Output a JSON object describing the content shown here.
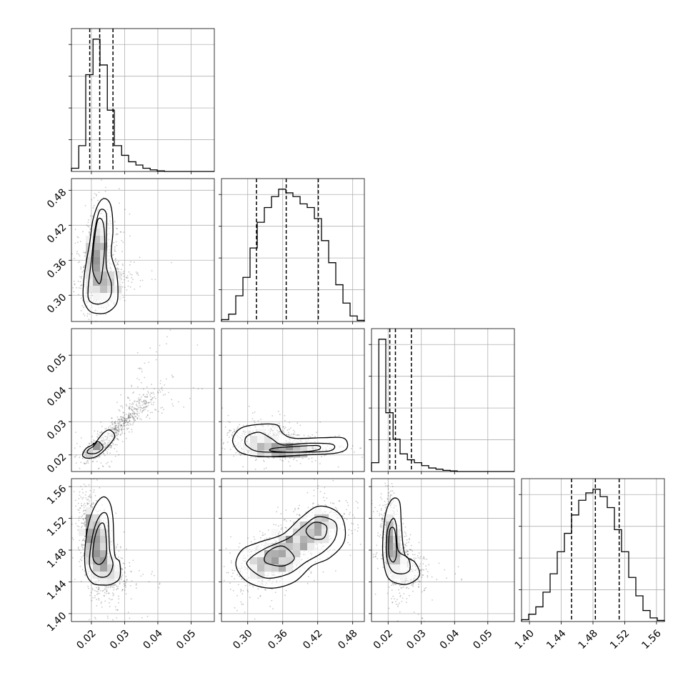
{
  "chart_data": {
    "type": "corner",
    "grid": true,
    "parameters": [
      {
        "range": [
          0.014,
          0.057
        ],
        "ticks": [
          0.02,
          0.03,
          0.04,
          0.05
        ],
        "tick_labels": [
          "0.02",
          "0.03",
          "0.04",
          "0.05"
        ],
        "quantiles": [
          0.0195,
          0.0225,
          0.0265
        ],
        "hist": {
          "edges": [
            0.014,
            0.0162,
            0.0183,
            0.0205,
            0.0226,
            0.0248,
            0.0269,
            0.0291,
            0.0312,
            0.0334,
            0.0355,
            0.0377,
            0.0398,
            0.042,
            0.0441,
            0.0463,
            0.0484,
            0.0506,
            0.0527,
            0.0549,
            0.057
          ],
          "counts": [
            1,
            8,
            30,
            41,
            33,
            19,
            8,
            5,
            3,
            2,
            1,
            0.5,
            0.2,
            0,
            0,
            0,
            0,
            0,
            0,
            0
          ]
        }
      },
      {
        "range": [
          0.255,
          0.5
        ],
        "ticks": [
          0.3,
          0.36,
          0.42,
          0.48
        ],
        "tick_labels": [
          "0.30",
          "0.36",
          "0.42",
          "0.48"
        ],
        "quantiles": [
          0.315,
          0.366,
          0.421
        ],
        "hist": {
          "edges": [
            0.255,
            0.2673,
            0.2795,
            0.2918,
            0.304,
            0.3163,
            0.3285,
            0.3408,
            0.353,
            0.3653,
            0.3775,
            0.3898,
            0.402,
            0.4143,
            0.4265,
            0.4388,
            0.451,
            0.4633,
            0.4755,
            0.4878,
            0.5
          ],
          "counts": [
            0.5,
            2,
            7,
            12,
            20,
            27,
            31,
            34,
            36,
            35,
            34,
            32,
            31,
            28,
            22,
            16,
            10,
            5,
            1.5,
            0.3
          ]
        }
      },
      {
        "range": [
          0.015,
          0.058
        ],
        "ticks": [
          0.02,
          0.03,
          0.04,
          0.05
        ],
        "tick_labels": [
          "0.02",
          "0.03",
          "0.04",
          "0.05"
        ],
        "quantiles": [
          0.0205,
          0.0222,
          0.027
        ],
        "hist": {
          "edges": [
            0.015,
            0.0172,
            0.0193,
            0.0215,
            0.0236,
            0.0258,
            0.0279,
            0.0301,
            0.0322,
            0.0344,
            0.0365,
            0.0387,
            0.0408,
            0.043,
            0.0451,
            0.0473,
            0.0494,
            0.0516,
            0.0537,
            0.0559,
            0.058
          ],
          "counts": [
            3,
            45,
            20,
            11,
            6,
            4,
            3,
            2,
            1.2,
            0.8,
            0.4,
            0.2,
            0,
            0,
            0,
            0,
            0,
            0,
            0,
            0
          ]
        }
      },
      {
        "range": [
          1.39,
          1.57
        ],
        "ticks": [
          1.4,
          1.44,
          1.48,
          1.52,
          1.56
        ],
        "tick_labels": [
          "1.40",
          "1.44",
          "1.48",
          "1.52",
          "1.56"
        ],
        "quantiles": [
          1.453,
          1.483,
          1.513
        ],
        "hist": {
          "edges": [
            1.39,
            1.399,
            1.408,
            1.417,
            1.426,
            1.435,
            1.444,
            1.453,
            1.462,
            1.471,
            1.48,
            1.489,
            1.498,
            1.507,
            1.516,
            1.525,
            1.534,
            1.543,
            1.552,
            1.561,
            1.57
          ],
          "counts": [
            0.5,
            2,
            4,
            8,
            13,
            19,
            24,
            29,
            33,
            35,
            36,
            34,
            31,
            25,
            19,
            12,
            7,
            3,
            1,
            0.3
          ]
        }
      }
    ],
    "pairs": [
      {
        "row": 1,
        "col": 0,
        "correlation": 0.3,
        "modes": [
          {
            "cx": 0.0215,
            "cy": 0.37,
            "sx": 0.0018,
            "sy": 0.03,
            "w": 0.6
          },
          {
            "cx": 0.024,
            "cy": 0.32,
            "sx": 0.003,
            "sy": 0.02,
            "w": 0.4
          }
        ],
        "contours": [
          [
            [
              0.0185,
              0.28
            ],
            [
              0.0205,
              0.27
            ],
            [
              0.0245,
              0.27
            ],
            [
              0.0275,
              0.285
            ],
            [
              0.028,
              0.31
            ],
            [
              0.0275,
              0.34
            ],
            [
              0.026,
              0.37
            ],
            [
              0.0265,
              0.41
            ],
            [
              0.026,
              0.45
            ],
            [
              0.0245,
              0.465
            ],
            [
              0.0225,
              0.46
            ],
            [
              0.0205,
              0.43
            ],
            [
              0.0195,
              0.39
            ],
            [
              0.018,
              0.34
            ],
            [
              0.0175,
              0.3
            ]
          ],
          [
            [
              0.0195,
              0.29
            ],
            [
              0.0225,
              0.285
            ],
            [
              0.0255,
              0.295
            ],
            [
              0.026,
              0.32
            ],
            [
              0.0245,
              0.35
            ],
            [
              0.0245,
              0.4
            ],
            [
              0.0245,
              0.44
            ],
            [
              0.0225,
              0.445
            ],
            [
              0.021,
              0.41
            ],
            [
              0.02,
              0.36
            ],
            [
              0.019,
              0.31
            ]
          ],
          [
            [
              0.0205,
              0.34
            ],
            [
              0.0225,
              0.32
            ],
            [
              0.0235,
              0.35
            ],
            [
              0.024,
              0.39
            ],
            [
              0.0235,
              0.425
            ],
            [
              0.022,
              0.43
            ],
            [
              0.021,
              0.4
            ],
            [
              0.0205,
              0.37
            ]
          ]
        ]
      },
      {
        "row": 2,
        "col": 0,
        "correlation": 0.95,
        "modes": [
          {
            "cx": 0.021,
            "cy": 0.0215,
            "sx": 0.0012,
            "sy": 0.0008,
            "w": 0.5
          },
          {
            "cx": 0.029,
            "cy": 0.029,
            "sx": 0.006,
            "sy": 0.006,
            "w": 0.5
          }
        ],
        "contours": [
          [
            [
              0.0175,
              0.0195
            ],
            [
              0.019,
              0.019
            ],
            [
              0.0215,
              0.0195
            ],
            [
              0.0245,
              0.022
            ],
            [
              0.027,
              0.0255
            ],
            [
              0.0255,
              0.0275
            ],
            [
              0.0235,
              0.0265
            ],
            [
              0.021,
              0.0235
            ],
            [
              0.0185,
              0.022
            ],
            [
              0.0175,
              0.0205
            ]
          ],
          [
            [
              0.019,
              0.0205
            ],
            [
              0.0215,
              0.0205
            ],
            [
              0.0235,
              0.0222
            ],
            [
              0.022,
              0.024
            ],
            [
              0.0205,
              0.0225
            ],
            [
              0.019,
              0.0215
            ]
          ]
        ]
      },
      {
        "row": 2,
        "col": 1,
        "correlation": -0.1,
        "modes": [
          {
            "cx": 0.36,
            "cy": 0.0215,
            "sx": 0.03,
            "sy": 0.0009,
            "w": 0.6
          },
          {
            "cx": 0.33,
            "cy": 0.025,
            "sx": 0.03,
            "sy": 0.002,
            "w": 0.4
          }
        ],
        "contours": [
          [
            [
              0.275,
              0.0235
            ],
            [
              0.29,
              0.0205
            ],
            [
              0.33,
              0.0195
            ],
            [
              0.4,
              0.02
            ],
            [
              0.45,
              0.0205
            ],
            [
              0.47,
              0.022
            ],
            [
              0.465,
              0.025
            ],
            [
              0.43,
              0.0252
            ],
            [
              0.38,
              0.025
            ],
            [
              0.36,
              0.0265
            ],
            [
              0.35,
              0.029
            ],
            [
              0.32,
              0.0292
            ],
            [
              0.29,
              0.0282
            ],
            [
              0.277,
              0.026
            ]
          ],
          [
            [
              0.3,
              0.0225
            ],
            [
              0.32,
              0.021
            ],
            [
              0.38,
              0.0208
            ],
            [
              0.44,
              0.0212
            ],
            [
              0.445,
              0.0232
            ],
            [
              0.4,
              0.0235
            ],
            [
              0.36,
              0.023
            ],
            [
              0.34,
              0.025
            ],
            [
              0.32,
              0.0268
            ],
            [
              0.3,
              0.0258
            ],
            [
              0.295,
              0.024
            ]
          ],
          [
            [
              0.34,
              0.0212
            ],
            [
              0.38,
              0.0208
            ],
            [
              0.42,
              0.0215
            ],
            [
              0.42,
              0.0228
            ],
            [
              0.38,
              0.0225
            ],
            [
              0.345,
              0.022
            ]
          ]
        ]
      },
      {
        "row": 3,
        "col": 0,
        "correlation": -0.4,
        "modes": [
          {
            "cx": 0.021,
            "cy": 1.49,
            "sx": 0.002,
            "sy": 0.025,
            "w": 0.7
          },
          {
            "cx": 0.025,
            "cy": 1.455,
            "sx": 0.003,
            "sy": 0.015,
            "w": 0.3
          }
        ],
        "contours": [
          [
            [
              0.0185,
              1.45
            ],
            [
              0.0205,
              1.438
            ],
            [
              0.0235,
              1.436
            ],
            [
              0.026,
              1.437
            ],
            [
              0.0285,
              1.445
            ],
            [
              0.0285,
              1.465
            ],
            [
              0.027,
              1.475
            ],
            [
              0.0265,
              1.52
            ],
            [
              0.0255,
              1.54
            ],
            [
              0.0235,
              1.547
            ],
            [
              0.021,
              1.535
            ],
            [
              0.019,
              1.51
            ],
            [
              0.018,
              1.475
            ]
          ],
          [
            [
              0.0195,
              1.46
            ],
            [
              0.022,
              1.447
            ],
            [
              0.025,
              1.448
            ],
            [
              0.0265,
              1.462
            ],
            [
              0.0255,
              1.48
            ],
            [
              0.025,
              1.52
            ],
            [
              0.0235,
              1.527
            ],
            [
              0.0215,
              1.515
            ],
            [
              0.02,
              1.49
            ]
          ],
          [
            [
              0.0205,
              1.47
            ],
            [
              0.0225,
              1.462
            ],
            [
              0.0245,
              1.475
            ],
            [
              0.024,
              1.51
            ],
            [
              0.0225,
              1.512
            ],
            [
              0.021,
              1.495
            ]
          ]
        ]
      },
      {
        "row": 3,
        "col": 1,
        "correlation": 0.6,
        "modes": [
          {
            "cx": 0.345,
            "cy": 1.47,
            "sx": 0.03,
            "sy": 0.018,
            "w": 0.55
          },
          {
            "cx": 0.41,
            "cy": 1.505,
            "sx": 0.025,
            "sy": 0.015,
            "w": 0.45
          }
        ],
        "contours": [
          [
            [
              0.28,
              1.46
            ],
            [
              0.3,
              1.44
            ],
            [
              0.34,
              1.432
            ],
            [
              0.38,
              1.44
            ],
            [
              0.41,
              1.46
            ],
            [
              0.44,
              1.47
            ],
            [
              0.465,
              1.49
            ],
            [
              0.465,
              1.515
            ],
            [
              0.45,
              1.53
            ],
            [
              0.42,
              1.535
            ],
            [
              0.39,
              1.52
            ],
            [
              0.36,
              1.5
            ],
            [
              0.32,
              1.49
            ],
            [
              0.29,
              1.48
            ]
          ],
          [
            [
              0.3,
              1.46
            ],
            [
              0.33,
              1.445
            ],
            [
              0.37,
              1.45
            ],
            [
              0.4,
              1.465
            ],
            [
              0.43,
              1.478
            ],
            [
              0.45,
              1.495
            ],
            [
              0.45,
              1.515
            ],
            [
              0.42,
              1.522
            ],
            [
              0.395,
              1.51
            ],
            [
              0.37,
              1.495
            ],
            [
              0.33,
              1.482
            ],
            [
              0.305,
              1.47
            ]
          ],
          [
            [
              0.33,
              1.465
            ],
            [
              0.36,
              1.46
            ],
            [
              0.38,
              1.47
            ],
            [
              0.36,
              1.485
            ],
            [
              0.335,
              1.478
            ]
          ],
          [
            [
              0.41,
              1.495
            ],
            [
              0.43,
              1.495
            ],
            [
              0.435,
              1.51
            ],
            [
              0.415,
              1.515
            ],
            [
              0.4,
              1.505
            ]
          ]
        ]
      },
      {
        "row": 3,
        "col": 2,
        "correlation": -0.45,
        "modes": [
          {
            "cx": 0.021,
            "cy": 1.49,
            "sx": 0.0012,
            "sy": 0.022,
            "w": 0.7
          },
          {
            "cx": 0.025,
            "cy": 1.46,
            "sx": 0.003,
            "sy": 0.015,
            "w": 0.3
          }
        ],
        "contours": [
          [
            [
              0.0185,
              1.47
            ],
            [
              0.02,
              1.445
            ],
            [
              0.024,
              1.437
            ],
            [
              0.0275,
              1.44
            ],
            [
              0.0295,
              1.45
            ],
            [
              0.028,
              1.465
            ],
            [
              0.025,
              1.475
            ],
            [
              0.024,
              1.51
            ],
            [
              0.0235,
              1.54
            ],
            [
              0.0215,
              1.545
            ],
            [
              0.0195,
              1.53
            ],
            [
              0.0185,
              1.5
            ]
          ],
          [
            [
              0.0195,
              1.475
            ],
            [
              0.021,
              1.455
            ],
            [
              0.024,
              1.45
            ],
            [
              0.0265,
              1.455
            ],
            [
              0.026,
              1.47
            ],
            [
              0.023,
              1.48
            ],
            [
              0.0225,
              1.51
            ],
            [
              0.0215,
              1.52
            ],
            [
              0.0198,
              1.505
            ]
          ],
          [
            [
              0.0202,
              1.475
            ],
            [
              0.0215,
              1.465
            ],
            [
              0.0225,
              1.475
            ],
            [
              0.022,
              1.505
            ],
            [
              0.0205,
              1.505
            ]
          ]
        ]
      }
    ]
  }
}
